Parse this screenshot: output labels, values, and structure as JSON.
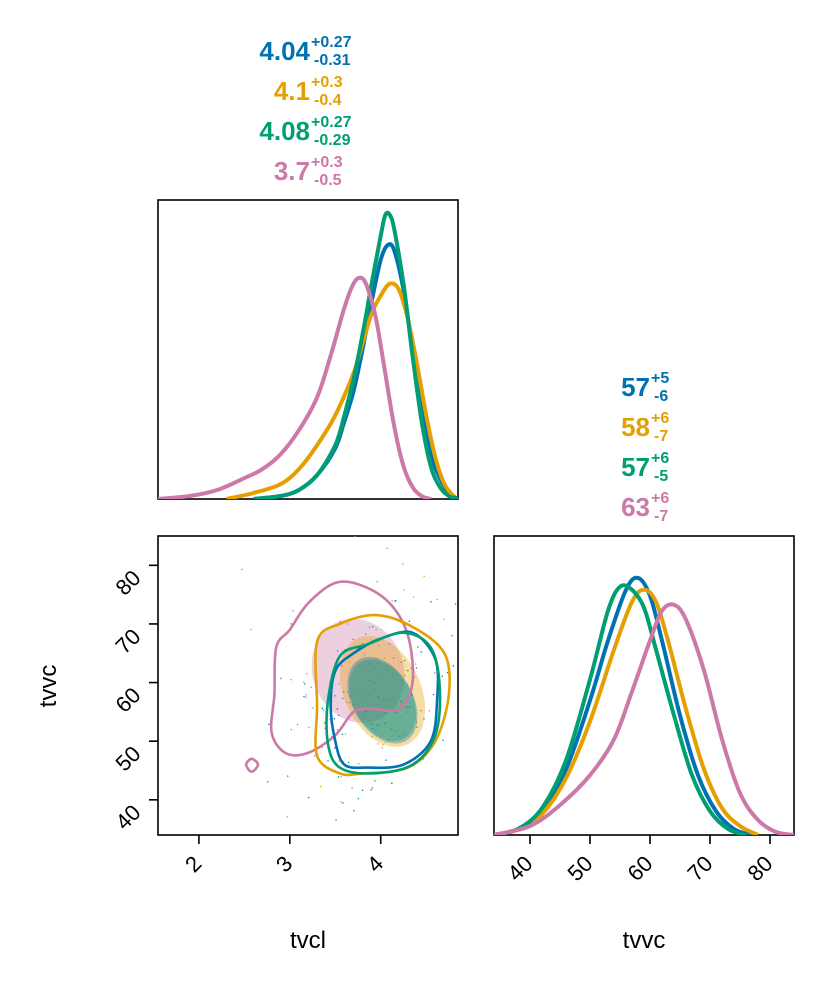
{
  "colors": {
    "blue": "#0072b2",
    "orange": "#e69f00",
    "green": "#009e73",
    "pink": "#cc79a7"
  },
  "labels": {
    "tvcl": "tvcl",
    "tvvc": "tvvc"
  },
  "chart_data": [
    {
      "type": "line",
      "panel": "marginal-density-tvcl",
      "xlabel": "",
      "ylabel": "",
      "xlim": [
        1.55,
        4.85
      ],
      "grid": false,
      "summaries": [
        {
          "color": "blue",
          "median": "4.04",
          "plus": "+0.27",
          "minus": "-0.31"
        },
        {
          "color": "orange",
          "median": "4.1",
          "plus": "+0.3",
          "minus": "-0.4"
        },
        {
          "color": "green",
          "median": "4.08",
          "plus": "+0.27",
          "minus": "-0.29"
        },
        {
          "color": "pink",
          "median": "3.7",
          "plus": "+0.3",
          "minus": "-0.5"
        }
      ],
      "series": [
        {
          "color": "blue",
          "x": [
            2.6,
            2.9,
            3.1,
            3.3,
            3.5,
            3.6,
            3.7,
            3.8,
            3.9,
            4.0,
            4.08,
            4.15,
            4.25,
            4.35,
            4.45,
            4.55,
            4.65,
            4.75,
            4.85
          ],
          "y": [
            0.0,
            0.01,
            0.03,
            0.08,
            0.17,
            0.26,
            0.36,
            0.5,
            0.66,
            0.8,
            0.85,
            0.83,
            0.7,
            0.5,
            0.3,
            0.15,
            0.07,
            0.02,
            0.0
          ]
        },
        {
          "color": "orange",
          "x": [
            2.3,
            2.6,
            2.9,
            3.1,
            3.3,
            3.5,
            3.7,
            3.8,
            3.9,
            4.0,
            4.1,
            4.2,
            4.3,
            4.4,
            4.5,
            4.6,
            4.7,
            4.8
          ],
          "y": [
            0.0,
            0.02,
            0.05,
            0.1,
            0.18,
            0.28,
            0.42,
            0.52,
            0.62,
            0.68,
            0.72,
            0.7,
            0.6,
            0.45,
            0.28,
            0.14,
            0.05,
            0.01
          ]
        },
        {
          "color": "green",
          "x": [
            2.6,
            2.9,
            3.1,
            3.3,
            3.5,
            3.6,
            3.7,
            3.8,
            3.9,
            4.0,
            4.05,
            4.1,
            4.15,
            4.25,
            4.35,
            4.45,
            4.55,
            4.65,
            4.75,
            4.85
          ],
          "y": [
            0.0,
            0.01,
            0.03,
            0.08,
            0.18,
            0.28,
            0.4,
            0.55,
            0.72,
            0.88,
            0.95,
            0.95,
            0.9,
            0.72,
            0.48,
            0.26,
            0.11,
            0.04,
            0.01,
            0.0
          ]
        },
        {
          "color": "pink",
          "x": [
            1.55,
            1.9,
            2.2,
            2.5,
            2.7,
            2.9,
            3.1,
            3.3,
            3.45,
            3.6,
            3.7,
            3.78,
            3.85,
            3.95,
            4.05,
            4.15,
            4.25,
            4.35,
            4.45,
            4.55
          ],
          "y": [
            0.0,
            0.01,
            0.03,
            0.07,
            0.1,
            0.15,
            0.23,
            0.34,
            0.48,
            0.64,
            0.72,
            0.74,
            0.71,
            0.6,
            0.42,
            0.24,
            0.11,
            0.04,
            0.01,
            0.0
          ]
        }
      ]
    },
    {
      "type": "line",
      "panel": "marginal-density-tvvc",
      "xlabel": "tvvc",
      "ylabel": "",
      "xlim": [
        34,
        84
      ],
      "xticks": [
        "40",
        "50",
        "60",
        "70",
        "80"
      ],
      "grid": false,
      "summaries": [
        {
          "color": "blue",
          "median": "57",
          "plus": "+5",
          "minus": "-6"
        },
        {
          "color": "orange",
          "median": "58",
          "plus": "+6",
          "minus": "-7"
        },
        {
          "color": "green",
          "median": "57",
          "plus": "+6",
          "minus": "-5"
        },
        {
          "color": "pink",
          "median": "63",
          "plus": "+6",
          "minus": "-7"
        }
      ],
      "series": [
        {
          "color": "blue",
          "x": [
            34,
            38,
            42,
            46,
            50,
            53,
            56,
            58,
            60,
            62,
            65,
            68,
            71,
            74,
            77
          ],
          "y": [
            0.0,
            0.02,
            0.08,
            0.22,
            0.45,
            0.65,
            0.82,
            0.86,
            0.8,
            0.65,
            0.4,
            0.2,
            0.08,
            0.02,
            0.0
          ]
        },
        {
          "color": "orange",
          "x": [
            34,
            38,
            42,
            46,
            50,
            54,
            57,
            59,
            61,
            63,
            66,
            69,
            72,
            75,
            78
          ],
          "y": [
            0.0,
            0.02,
            0.07,
            0.19,
            0.38,
            0.62,
            0.78,
            0.82,
            0.78,
            0.65,
            0.42,
            0.22,
            0.09,
            0.03,
            0.0
          ]
        },
        {
          "color": "green",
          "x": [
            34,
            38,
            42,
            46,
            50,
            53,
            55,
            57,
            59,
            61,
            64,
            67,
            70,
            73,
            76
          ],
          "y": [
            0.0,
            0.02,
            0.09,
            0.25,
            0.52,
            0.75,
            0.83,
            0.82,
            0.76,
            0.62,
            0.4,
            0.2,
            0.08,
            0.02,
            0.0
          ]
        },
        {
          "color": "pink",
          "x": [
            34,
            40,
            45,
            50,
            54,
            57,
            60,
            62,
            64,
            66,
            69,
            72,
            75,
            78,
            81,
            84
          ],
          "y": [
            0.0,
            0.03,
            0.1,
            0.2,
            0.32,
            0.48,
            0.65,
            0.75,
            0.77,
            0.72,
            0.55,
            0.32,
            0.14,
            0.05,
            0.01,
            0.0
          ]
        }
      ]
    },
    {
      "type": "scatter",
      "panel": "joint-tvcl-tvvc",
      "xlabel": "tvcl",
      "ylabel": "tvvc",
      "xlim": [
        1.55,
        4.85
      ],
      "ylim": [
        34,
        85
      ],
      "xticks": [
        "2",
        "3",
        "4"
      ],
      "yticks": [
        "40",
        "50",
        "60",
        "70",
        "80"
      ],
      "grid": false,
      "filled_regions": [
        {
          "color": "pink",
          "cx": 3.75,
          "cy": 62,
          "rx": 0.5,
          "ry": 9,
          "rot": -20
        },
        {
          "color": "orange",
          "cx": 4.02,
          "cy": 58.5,
          "rx": 0.42,
          "ry": 10,
          "rot": -25
        },
        {
          "color": "blue",
          "cx": 4.02,
          "cy": 57,
          "rx": 0.33,
          "ry": 8,
          "rot": -30
        },
        {
          "color": "green",
          "cx": 4.02,
          "cy": 57,
          "rx": 0.32,
          "ry": 7.5,
          "rot": -30
        }
      ],
      "contours": [
        {
          "color": "pink",
          "points": [
            [
              3.0,
              69.0
            ],
            [
              3.2,
              73.5
            ],
            [
              3.5,
              77.0
            ],
            [
              3.8,
              76.5
            ],
            [
              4.1,
              73.5
            ],
            [
              4.3,
              68.0
            ],
            [
              4.35,
              60.0
            ],
            [
              4.2,
              55.5
            ],
            [
              3.9,
              55.5
            ],
            [
              3.7,
              55.0
            ],
            [
              3.5,
              51.0
            ],
            [
              3.2,
              48.0
            ],
            [
              2.95,
              48.0
            ],
            [
              2.8,
              51.5
            ],
            [
              2.83,
              58.0
            ],
            [
              2.85,
              66.0
            ]
          ]
        },
        {
          "color": "orange",
          "points": [
            [
              3.3,
              67.0
            ],
            [
              3.55,
              70.0
            ],
            [
              3.95,
              71.5
            ],
            [
              4.35,
              69.5
            ],
            [
              4.7,
              65.0
            ],
            [
              4.75,
              58.0
            ],
            [
              4.6,
              50.0
            ],
            [
              4.3,
              45.5
            ],
            [
              3.8,
              44.5
            ],
            [
              3.55,
              44.5
            ],
            [
              3.3,
              47.5
            ],
            [
              3.3,
              56.0
            ]
          ]
        },
        {
          "color": "blue",
          "points": [
            [
              3.5,
              62.0
            ],
            [
              3.7,
              65.0
            ],
            [
              4.0,
              67.5
            ],
            [
              4.35,
              68.5
            ],
            [
              4.6,
              64.0
            ],
            [
              4.62,
              57.0
            ],
            [
              4.55,
              50.0
            ],
            [
              4.25,
              46.0
            ],
            [
              3.85,
              45.5
            ],
            [
              3.6,
              46.0
            ],
            [
              3.5,
              50.0
            ],
            [
              3.45,
              56.0
            ]
          ]
        },
        {
          "color": "green",
          "points": [
            [
              3.55,
              64.5
            ],
            [
              3.85,
              66.5
            ],
            [
              4.25,
              68.5
            ],
            [
              4.55,
              66.0
            ],
            [
              4.65,
              59.0
            ],
            [
              4.6,
              51.0
            ],
            [
              4.35,
              46.0
            ],
            [
              3.9,
              44.5
            ],
            [
              3.55,
              45.5
            ],
            [
              3.42,
              49.5
            ],
            [
              3.42,
              57.0
            ]
          ]
        },
        {
          "color": "pink",
          "points": [
            [
              2.52,
              46.0
            ],
            [
              2.58,
              47.0
            ],
            [
              2.65,
              46.0
            ],
            [
              2.58,
              44.8
            ]
          ]
        }
      ]
    }
  ]
}
